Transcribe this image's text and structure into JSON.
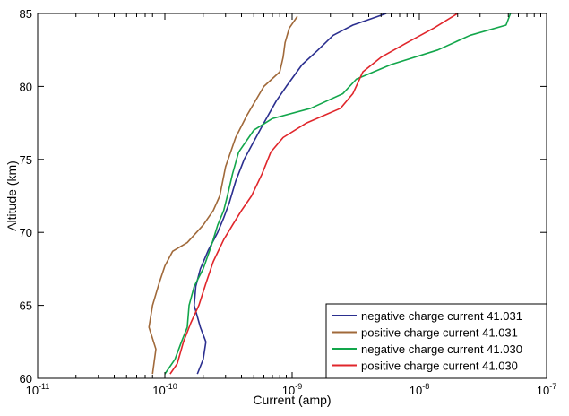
{
  "chart_data": {
    "type": "line",
    "title": "",
    "xlabel": "Current  (amp)",
    "ylabel": "Altitude  (km)",
    "x_scale": "log",
    "xlim": [
      1e-11,
      1e-07
    ],
    "ylim": [
      60,
      85
    ],
    "x_ticks": [
      1e-11,
      1e-10,
      1e-09,
      1e-08,
      1e-07
    ],
    "x_tick_labels": [
      {
        "base": "10",
        "exp": "-11"
      },
      {
        "base": "10",
        "exp": "-10"
      },
      {
        "base": "10",
        "exp": "-9"
      },
      {
        "base": "10",
        "exp": "-8"
      },
      {
        "base": "10",
        "exp": "-7"
      }
    ],
    "y_ticks": [
      60,
      65,
      70,
      75,
      80,
      85
    ],
    "y_tick_labels": [
      "60",
      "65",
      "70",
      "75",
      "80",
      "85"
    ],
    "grid": false,
    "legend_position": "bottom-right",
    "series": [
      {
        "name": "negative charge current 41.031",
        "color": "#2b2f8f",
        "points": [
          [
            1.8e-10,
            60.3
          ],
          [
            2e-10,
            61.3
          ],
          [
            2.1e-10,
            62.5
          ],
          [
            1.9e-10,
            63.5
          ],
          [
            1.7e-10,
            65.0
          ],
          [
            1.75e-10,
            66.3
          ],
          [
            1.9e-10,
            67.5
          ],
          [
            2.2e-10,
            68.8
          ],
          [
            2.6e-10,
            70.0
          ],
          [
            2.9e-10,
            71.0
          ],
          [
            3.2e-10,
            72.0
          ],
          [
            3.6e-10,
            73.5
          ],
          [
            4.2e-10,
            75.0
          ],
          [
            5.2e-10,
            76.5
          ],
          [
            6e-10,
            77.5
          ],
          [
            7.5e-10,
            79.0
          ],
          [
            9e-10,
            80.0
          ],
          [
            1.2e-09,
            81.5
          ],
          [
            1.6e-09,
            82.5
          ],
          [
            2.1e-09,
            83.5
          ],
          [
            3e-09,
            84.2
          ],
          [
            5.5e-09,
            85.0
          ]
        ]
      },
      {
        "name": "positive charge current 41.031",
        "color": "#a0693a",
        "points": [
          [
            8e-11,
            60.3
          ],
          [
            8.5e-11,
            62.0
          ],
          [
            7.5e-11,
            63.5
          ],
          [
            8e-11,
            65.0
          ],
          [
            9e-11,
            66.5
          ],
          [
            1e-10,
            67.7
          ],
          [
            1.15e-10,
            68.7
          ],
          [
            1.5e-10,
            69.3
          ],
          [
            2e-10,
            70.5
          ],
          [
            2.4e-10,
            71.5
          ],
          [
            2.7e-10,
            72.5
          ],
          [
            3e-10,
            74.5
          ],
          [
            3.6e-10,
            76.5
          ],
          [
            4.4e-10,
            78.0
          ],
          [
            6e-10,
            80.0
          ],
          [
            8e-10,
            81.0
          ],
          [
            8.5e-10,
            82.0
          ],
          [
            8.8e-10,
            83.0
          ],
          [
            9.5e-10,
            84.0
          ],
          [
            1.1e-09,
            84.8
          ]
        ]
      },
      {
        "name": "negative charge current 41.030",
        "color": "#12a64b",
        "points": [
          [
            1e-10,
            60.3
          ],
          [
            1.2e-10,
            61.3
          ],
          [
            1.35e-10,
            62.5
          ],
          [
            1.5e-10,
            63.5
          ],
          [
            1.55e-10,
            65.0
          ],
          [
            1.7e-10,
            66.3
          ],
          [
            2e-10,
            67.5
          ],
          [
            2.3e-10,
            69.0
          ],
          [
            2.6e-10,
            70.5
          ],
          [
            2.9e-10,
            71.5
          ],
          [
            3.1e-10,
            72.5
          ],
          [
            3.4e-10,
            74.0
          ],
          [
            3.8e-10,
            75.5
          ],
          [
            5e-10,
            77.0
          ],
          [
            7e-10,
            77.8
          ],
          [
            1.4e-09,
            78.5
          ],
          [
            2.5e-09,
            79.5
          ],
          [
            3.2e-09,
            80.5
          ],
          [
            6e-09,
            81.5
          ],
          [
            1.4e-08,
            82.5
          ],
          [
            2.5e-08,
            83.5
          ],
          [
            4.8e-08,
            84.2
          ],
          [
            5.2e-08,
            85.0
          ]
        ]
      },
      {
        "name": "positive charge current 41.030",
        "color": "#e0262b",
        "points": [
          [
            1.1e-10,
            60.3
          ],
          [
            1.25e-10,
            61.0
          ],
          [
            1.4e-10,
            62.5
          ],
          [
            1.6e-10,
            63.8
          ],
          [
            1.85e-10,
            65.0
          ],
          [
            2.1e-10,
            66.5
          ],
          [
            2.4e-10,
            68.0
          ],
          [
            2.9e-10,
            69.5
          ],
          [
            3.4e-10,
            70.5
          ],
          [
            4e-10,
            71.5
          ],
          [
            4.8e-10,
            72.5
          ],
          [
            5.8e-10,
            74.0
          ],
          [
            6.8e-10,
            75.5
          ],
          [
            8.5e-10,
            76.5
          ],
          [
            1.3e-09,
            77.5
          ],
          [
            2.4e-09,
            78.5
          ],
          [
            3e-09,
            79.5
          ],
          [
            3.6e-09,
            81.0
          ],
          [
            5e-09,
            82.0
          ],
          [
            8e-09,
            83.0
          ],
          [
            1.3e-08,
            84.0
          ],
          [
            2e-08,
            85.0
          ]
        ]
      }
    ]
  }
}
